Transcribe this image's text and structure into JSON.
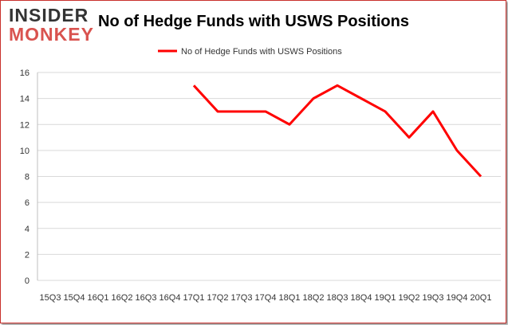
{
  "logo": {
    "line1": "INSIDER",
    "line2": "MONKEY"
  },
  "chart_data": {
    "type": "line",
    "title": "No of Hedge Funds with USWS Positions",
    "xlabel": "",
    "ylabel": "",
    "ylim": [
      0,
      16
    ],
    "yticks": [
      0,
      2,
      4,
      6,
      8,
      10,
      12,
      14,
      16
    ],
    "grid": true,
    "legend_position": "top-center",
    "categories": [
      "15Q3",
      "15Q4",
      "16Q1",
      "16Q2",
      "16Q3",
      "16Q4",
      "17Q1",
      "17Q2",
      "17Q3",
      "17Q4",
      "18Q1",
      "18Q2",
      "18Q3",
      "18Q4",
      "19Q1",
      "19Q2",
      "19Q3",
      "19Q4",
      "20Q1"
    ],
    "series": [
      {
        "name": "No of Hedge Funds with USWS Positions",
        "color": "#ff0000",
        "values": [
          null,
          null,
          null,
          null,
          null,
          null,
          15,
          13,
          13,
          13,
          12,
          14,
          15,
          14,
          13,
          11,
          13,
          10,
          8
        ]
      }
    ]
  }
}
